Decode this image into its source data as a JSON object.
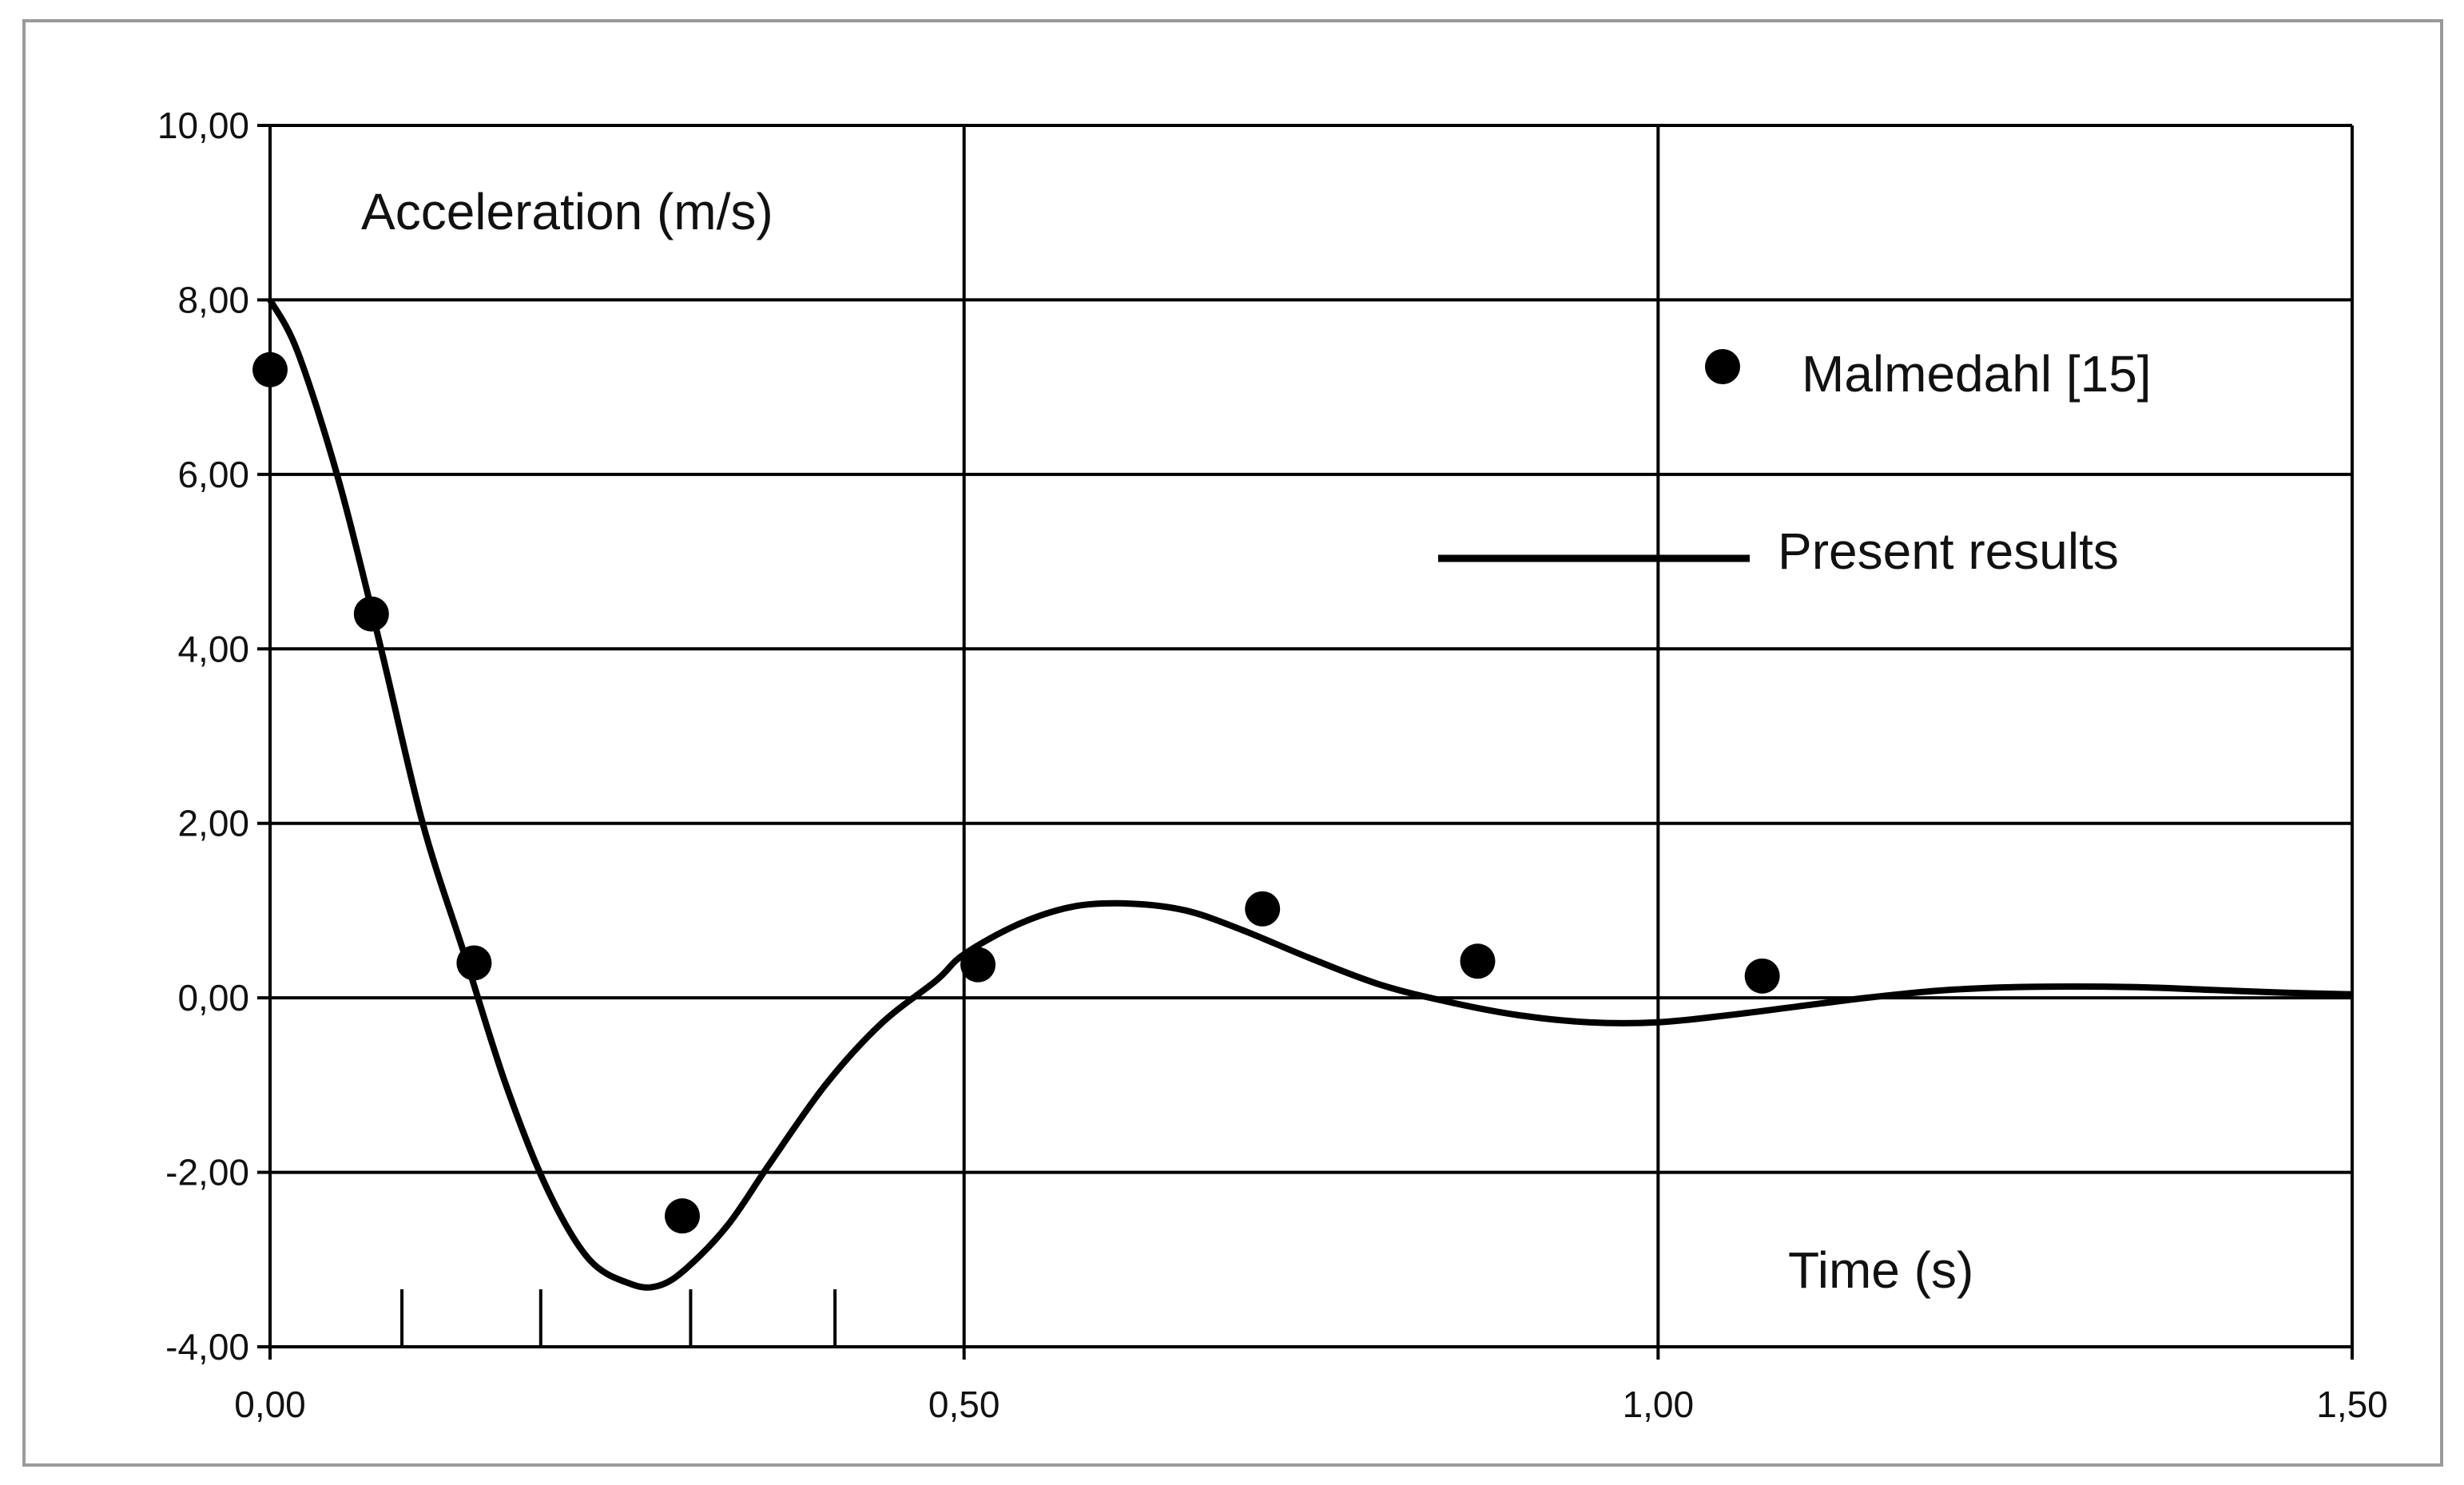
{
  "chart_data": {
    "type": "scatter",
    "title": "",
    "xlabel": "Time (s)",
    "ylabel": "Acceleration (m/s)",
    "xlim": [
      0,
      1.5
    ],
    "ylim": [
      -4,
      10
    ],
    "x_ticks": [
      "0,00",
      "0,50",
      "1,00",
      "1,50"
    ],
    "x_tick_values": [
      0,
      0.5,
      1.0,
      1.5
    ],
    "y_ticks": [
      "-4,00",
      "-2,00",
      "0,00",
      "2,00",
      "4,00",
      "6,00",
      "8,00",
      "10,00"
    ],
    "y_tick_values": [
      -4,
      -2,
      0,
      2,
      4,
      6,
      8,
      10
    ],
    "minor_marks_x": [
      0.095,
      0.195,
      0.303,
      0.407
    ],
    "grid": true,
    "legend_position": "right",
    "series": [
      {
        "name": "Malmedahl [15]",
        "kind": "markers",
        "marker": "circle",
        "color": "#000000",
        "x": [
          0.0,
          0.073,
          0.147,
          0.297,
          0.51,
          0.715,
          0.87,
          1.075
        ],
        "y": [
          7.2,
          4.4,
          0.4,
          -2.5,
          0.38,
          1.02,
          0.42,
          0.25
        ]
      },
      {
        "name": "Present results",
        "kind": "line",
        "color": "#000000",
        "x": [
          0.0,
          0.02,
          0.05,
          0.08,
          0.11,
          0.14,
          0.17,
          0.2,
          0.23,
          0.26,
          0.28,
          0.3,
          0.33,
          0.36,
          0.4,
          0.44,
          0.48,
          0.5,
          0.54,
          0.58,
          0.62,
          0.66,
          0.7,
          0.75,
          0.8,
          0.85,
          0.9,
          0.95,
          1.0,
          1.05,
          1.1,
          1.15,
          1.2,
          1.25,
          1.3,
          1.35,
          1.4,
          1.45,
          1.5
        ],
        "y": [
          8.0,
          7.4,
          5.9,
          4.0,
          2.0,
          0.5,
          -1.0,
          -2.2,
          -3.0,
          -3.28,
          -3.3,
          -3.1,
          -2.6,
          -1.9,
          -1.0,
          -0.3,
          0.2,
          0.5,
          0.85,
          1.05,
          1.08,
          1.0,
          0.78,
          0.45,
          0.15,
          -0.05,
          -0.2,
          -0.28,
          -0.28,
          -0.2,
          -0.1,
          0.0,
          0.08,
          0.12,
          0.13,
          0.12,
          0.09,
          0.06,
          0.04
        ]
      }
    ]
  }
}
